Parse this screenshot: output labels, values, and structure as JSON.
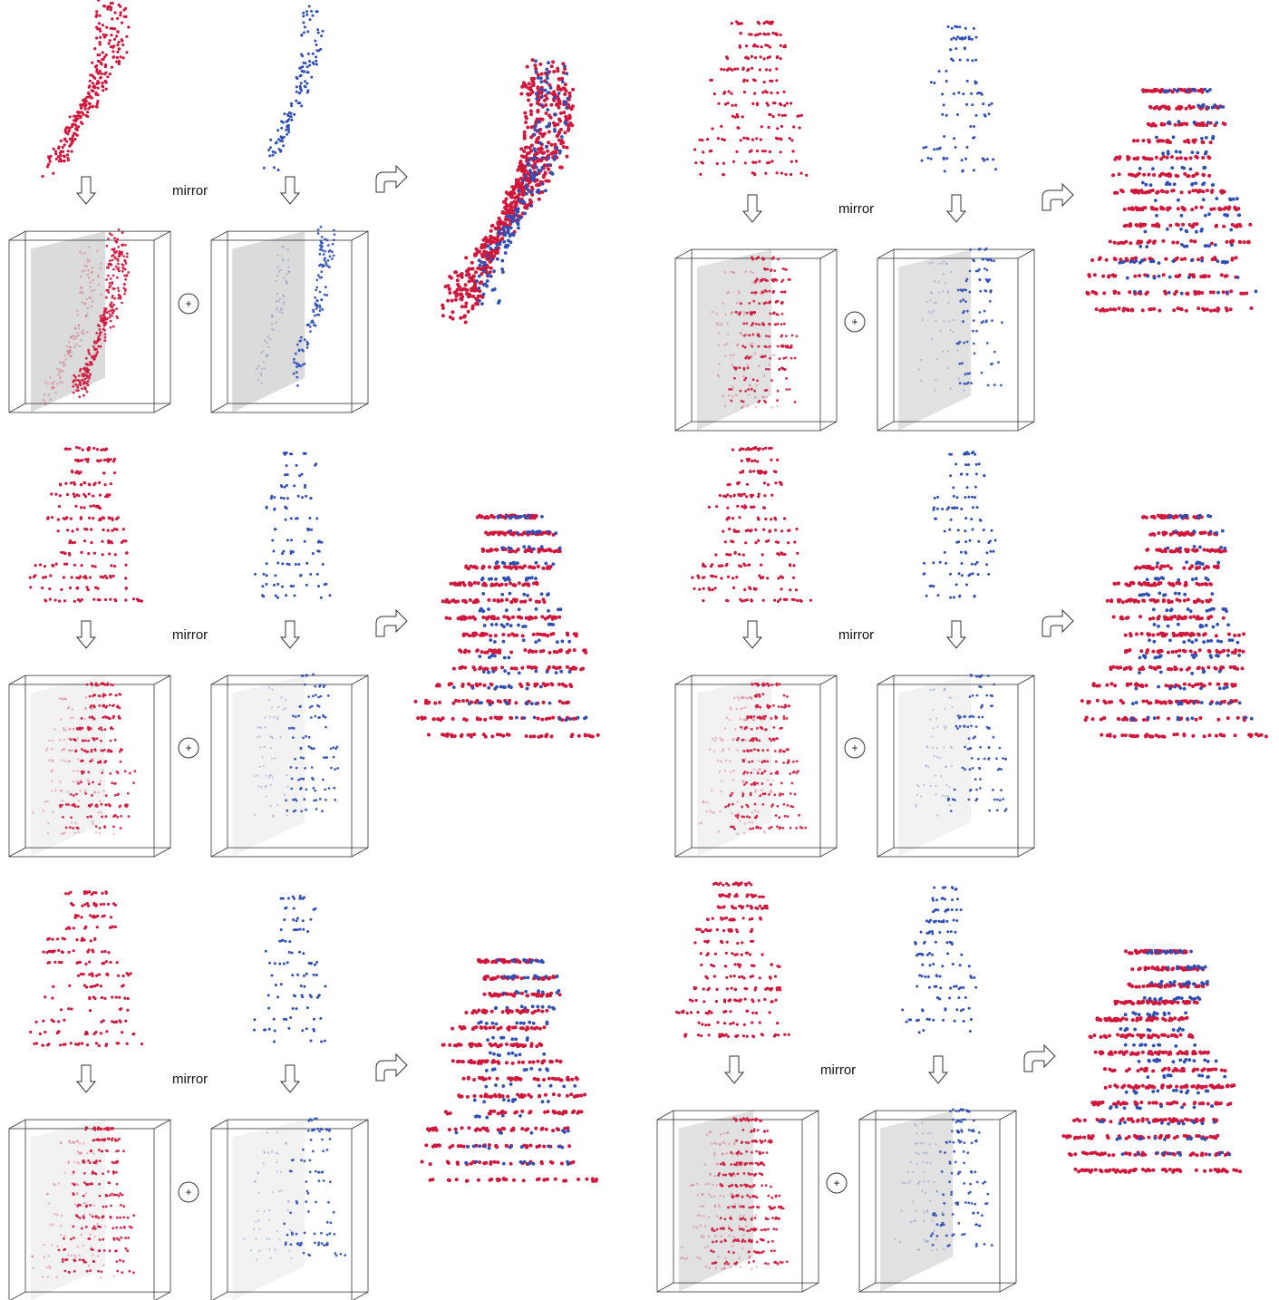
{
  "colors": {
    "red": "#d0183c",
    "blue": "#2f4fb5",
    "plane": "#bdbdbd",
    "box": "#333333",
    "background": "#ffffff"
  },
  "icons": [
    "down-arrow-icon",
    "turn-arrow-icon",
    "plus-circle-icon"
  ],
  "panels": [
    {
      "mirror_label": "mirror",
      "plus_symbol": "+"
    },
    {
      "mirror_label": "mirror",
      "plus_symbol": "+"
    },
    {
      "mirror_label": "mirror",
      "plus_symbol": "+"
    },
    {
      "mirror_label": "mirror",
      "plus_symbol": "+"
    },
    {
      "mirror_label": "mirror",
      "plus_symbol": "+"
    },
    {
      "mirror_label": "mirror",
      "plus_symbol": "+"
    }
  ]
}
